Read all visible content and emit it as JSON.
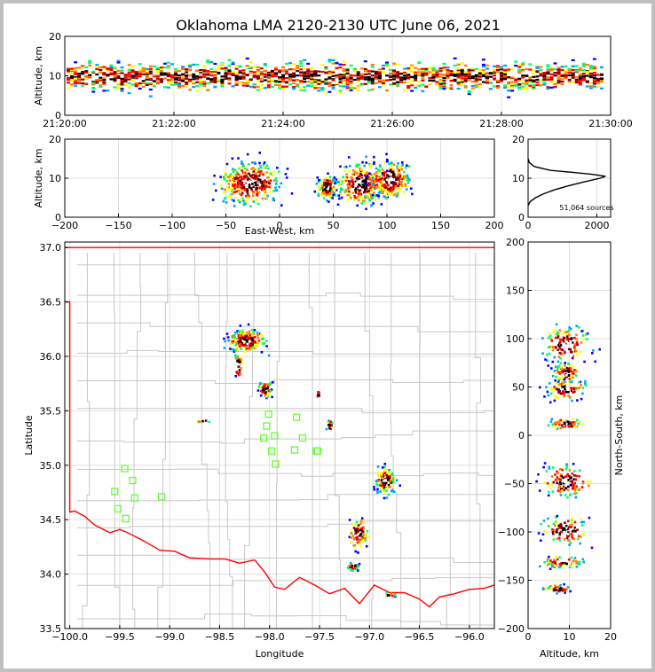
{
  "title": "Oklahoma LMA 2120-2130 UTC June 06, 2021",
  "source_count_label": "51,064 sources",
  "colors": {
    "frame": "#c0c0c0",
    "border": "#ff0000",
    "grid": "#e0e0e0",
    "counties": "#c8c8c8",
    "stations": "#66ff33",
    "density": [
      "#0000ff",
      "#00a0ff",
      "#00ff66",
      "#ffff00",
      "#ff8000",
      "#ff0000",
      "#800000",
      "#000000",
      "#ffffff"
    ]
  },
  "chart_data": [
    {
      "id": "time_altitude",
      "type": "heatmap",
      "xlabel": "",
      "ylabel": "Altitude, km",
      "x_ticks": [
        "21:20:00",
        "21:22:00",
        "21:24:00",
        "21:26:00",
        "21:28:00",
        "21:30:00"
      ],
      "xlim": [
        "21:20:00",
        "21:30:00"
      ],
      "ylim": [
        0,
        20
      ],
      "y_ticks": [
        0,
        10,
        20
      ],
      "band": {
        "y_center": 10,
        "y_min": 1,
        "y_max": 15
      }
    },
    {
      "id": "eastwest_altitude",
      "type": "heatmap",
      "xlabel": "East-West, km",
      "ylabel": "Altitude, km",
      "xlim": [
        -200,
        200
      ],
      "ylim": [
        0,
        20
      ],
      "x_ticks": [
        -200,
        -150,
        -100,
        -50,
        0,
        50,
        100,
        150,
        200
      ],
      "y_ticks": [
        0,
        10,
        20
      ],
      "clusters": [
        {
          "x": -28,
          "y": 9,
          "sx": 14,
          "sy": 2.6
        },
        {
          "x": 43,
          "y": 8,
          "sx": 4,
          "sy": 1.6
        },
        {
          "x": 75,
          "y": 9,
          "sx": 11,
          "sy": 2.5
        },
        {
          "x": 102,
          "y": 10,
          "sx": 9,
          "sy": 2.4
        }
      ]
    },
    {
      "id": "altitude_histogram",
      "type": "line",
      "xlabel": "",
      "ylabel": "",
      "xlim": [
        0,
        2400
      ],
      "ylim": [
        0,
        20
      ],
      "x_ticks": [
        0,
        2000
      ],
      "y_ticks": [
        0,
        10,
        20
      ],
      "altitude": [
        3,
        4,
        5,
        6,
        7,
        8,
        9,
        10,
        10.5,
        11,
        11.5,
        12,
        13,
        14,
        15
      ],
      "count": [
        0,
        60,
        220,
        450,
        760,
        1150,
        1600,
        2100,
        2250,
        1850,
        1300,
        650,
        180,
        40,
        0
      ]
    },
    {
      "id": "plan_view",
      "type": "heatmap",
      "xlabel": "Longitude",
      "ylabel": "Latitude",
      "xlim": [
        -100.05,
        -95.75
      ],
      "ylim": [
        33.5,
        37.05
      ],
      "x_ticks": [
        "-100.0",
        "-99.5",
        "-99.0",
        "-98.5",
        "-98.0",
        "-97.5",
        "-97.0",
        "-96.5",
        "-96.0"
      ],
      "y_ticks": [
        "33.5",
        "34.0",
        "34.5",
        "35.0",
        "35.5",
        "36.0",
        "36.5",
        "37.0"
      ],
      "stations": [
        [
          -99.45,
          34.97
        ],
        [
          -99.37,
          34.86
        ],
        [
          -99.55,
          34.76
        ],
        [
          -99.35,
          34.7
        ],
        [
          -99.52,
          34.6
        ],
        [
          -99.44,
          34.51
        ],
        [
          -99.08,
          34.71
        ],
        [
          -98.01,
          35.47
        ],
        [
          -98.03,
          35.36
        ],
        [
          -98.06,
          35.25
        ],
        [
          -97.95,
          35.27
        ],
        [
          -97.98,
          35.13
        ],
        [
          -97.94,
          35.01
        ],
        [
          -97.73,
          35.44
        ],
        [
          -97.67,
          35.25
        ],
        [
          -97.75,
          35.14
        ],
        [
          -97.53,
          35.13
        ],
        [
          -97.52,
          35.13
        ]
      ],
      "clusters": [
        {
          "lon": -98.24,
          "lat": 36.15,
          "sx": 0.09,
          "sy": 0.05,
          "n": 200
        },
        {
          "lon": -98.32,
          "lat": 35.93,
          "sx": 0.02,
          "sy": 0.07,
          "n": 30
        },
        {
          "lon": -98.05,
          "lat": 35.71,
          "sx": 0.03,
          "sy": 0.04,
          "n": 55
        },
        {
          "lon": -97.52,
          "lat": 35.66,
          "sx": 0.01,
          "sy": 0.02,
          "n": 8
        },
        {
          "lon": -97.41,
          "lat": 35.37,
          "sx": 0.02,
          "sy": 0.03,
          "n": 18
        },
        {
          "lon": -98.67,
          "lat": 35.42,
          "sx": 0.04,
          "sy": 0.01,
          "n": 6
        },
        {
          "lon": -96.85,
          "lat": 34.87,
          "sx": 0.05,
          "sy": 0.06,
          "n": 110
        },
        {
          "lon": -97.12,
          "lat": 34.38,
          "sx": 0.05,
          "sy": 0.07,
          "n": 80
        },
        {
          "lon": -97.18,
          "lat": 34.08,
          "sx": 0.03,
          "sy": 0.02,
          "n": 25
        },
        {
          "lon": -96.8,
          "lat": 33.82,
          "sx": 0.04,
          "sy": 0.01,
          "n": 12
        }
      ]
    },
    {
      "id": "altitude_northsouth",
      "type": "heatmap",
      "xlabel": "Altitude, km",
      "ylabel": "North-South, km",
      "xlim": [
        0,
        20
      ],
      "ylim": [
        -200,
        200
      ],
      "x_ticks": [
        0,
        10,
        20
      ],
      "y_ticks": [
        -200,
        -150,
        -100,
        -50,
        0,
        50,
        100,
        150,
        200
      ],
      "clusters": [
        {
          "x": 9,
          "y": 95,
          "sx": 2.8,
          "sy": 9
        },
        {
          "x": 9,
          "y": 66,
          "sx": 1.5,
          "sy": 5
        },
        {
          "x": 9,
          "y": 48,
          "sx": 2.4,
          "sy": 5
        },
        {
          "x": 9,
          "y": 13,
          "sx": 2,
          "sy": 3
        },
        {
          "x": 9,
          "y": -47,
          "sx": 3,
          "sy": 8
        },
        {
          "x": 9,
          "y": -97,
          "sx": 2.8,
          "sy": 7
        },
        {
          "x": 8,
          "y": -130,
          "sx": 2.5,
          "sy": 3
        },
        {
          "x": 7,
          "y": -158,
          "sx": 1.5,
          "sy": 2
        }
      ]
    }
  ]
}
